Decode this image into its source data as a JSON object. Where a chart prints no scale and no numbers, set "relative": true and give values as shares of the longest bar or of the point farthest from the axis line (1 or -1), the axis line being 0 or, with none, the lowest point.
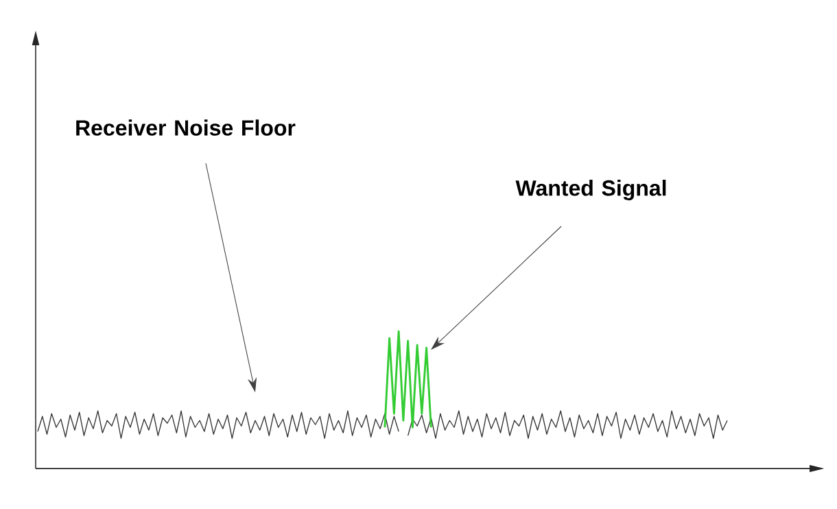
{
  "chart_data": {
    "type": "line",
    "relative": true,
    "marker": "none",
    "line_style": "solid",
    "annotations": [
      "Receiver Noise Floor",
      "Wanted Signal"
    ],
    "categories": [
      null,
      null,
      null,
      null,
      null,
      null,
      null,
      null,
      null,
      null,
      null,
      null,
      null,
      null,
      null,
      null,
      null,
      null,
      null,
      null,
      null,
      null,
      null,
      null,
      null,
      null,
      null,
      null,
      null,
      null,
      null,
      null,
      null,
      null,
      null,
      null,
      null,
      null,
      null,
      null,
      null,
      null,
      null,
      null,
      null,
      null,
      null,
      null,
      null,
      null,
      null,
      null,
      null,
      null,
      null,
      null,
      null,
      null,
      null,
      null,
      null,
      null,
      null,
      null,
      null,
      null,
      null,
      null,
      null,
      null,
      null,
      null,
      null,
      null,
      null,
      null,
      null,
      null,
      null,
      null,
      null,
      null,
      null,
      null,
      null,
      null,
      null,
      null,
      null,
      null,
      null,
      null,
      null,
      null,
      null,
      null,
      null,
      null,
      null,
      null,
      null,
      null,
      null,
      null,
      null,
      null,
      null,
      null,
      null,
      null,
      null,
      null,
      null,
      null,
      null,
      null,
      null,
      null,
      null,
      null,
      null,
      null,
      null,
      null,
      null,
      null,
      null,
      null,
      null,
      null,
      null,
      null,
      null,
      null,
      null,
      null,
      null,
      null,
      null,
      null,
      null,
      null,
      null,
      null,
      null,
      null,
      null,
      null,
      null,
      null
    ],
    "series": [
      {
        "color": "#333333",
        "values": [
          0.27,
          0.38,
          0.25,
          0.4,
          0.3,
          0.36,
          0.23,
          0.39,
          0.28,
          0.41,
          0.24,
          0.37,
          0.29,
          0.42,
          0.26,
          0.35,
          0.31,
          0.4,
          0.22,
          0.38,
          0.3,
          0.41,
          0.25,
          0.36,
          0.28,
          0.4,
          0.24,
          0.37,
          0.33,
          0.39,
          0.26,
          0.42,
          0.23,
          0.38,
          0.3,
          0.35,
          0.27,
          0.4,
          0.25,
          0.36,
          0.29,
          0.39,
          0.22,
          0.37,
          0.31,
          0.41,
          0.26,
          0.35,
          0.28,
          0.38,
          0.24,
          0.4,
          0.3,
          0.36,
          0.23,
          0.39,
          0.27,
          0.41,
          0.25,
          0.37,
          0.32,
          0.38,
          0.22,
          0.4,
          0.28,
          0.35,
          0.26,
          0.42,
          0.24,
          0.37,
          0.3,
          0.39,
          0.23,
          0.36,
          0.29,
          0.4,
          0.25,
          0.38,
          0.27,
          null,
          0.24,
          0.36,
          0.31,
          0.39,
          0.26,
          0.37,
          0.22,
          0.4,
          0.28,
          0.35,
          0.3,
          0.42,
          0.25,
          0.38,
          0.27,
          0.36,
          0.23,
          0.4,
          0.29,
          0.37,
          0.26,
          0.41,
          0.24,
          0.35,
          0.31,
          0.39,
          0.22,
          0.38,
          0.28,
          0.4,
          0.25,
          0.36,
          0.3,
          0.42,
          0.27,
          0.37,
          0.23,
          0.39,
          0.29,
          0.35,
          0.26,
          0.4,
          0.24,
          0.38,
          0.31,
          0.41,
          0.22,
          0.36,
          0.28,
          0.39,
          0.25,
          0.37,
          0.3,
          0.4,
          0.27,
          0.35,
          0.23,
          0.42,
          0.29,
          0.38,
          0.26,
          0.36,
          0.24,
          0.4,
          0.31,
          0.37,
          0.22,
          0.39,
          0.28,
          0.35
        ]
      },
      {
        "color": "#33cc33",
        "values": [
          null,
          null,
          null,
          null,
          null,
          null,
          null,
          null,
          null,
          null,
          null,
          null,
          null,
          null,
          null,
          null,
          null,
          null,
          null,
          null,
          null,
          null,
          null,
          null,
          null,
          null,
          null,
          null,
          null,
          null,
          null,
          null,
          null,
          null,
          null,
          null,
          null,
          null,
          null,
          null,
          null,
          null,
          null,
          null,
          null,
          null,
          null,
          null,
          null,
          null,
          null,
          null,
          null,
          null,
          null,
          null,
          null,
          null,
          null,
          null,
          null,
          null,
          null,
          null,
          null,
          null,
          null,
          null,
          null,
          null,
          null,
          null,
          null,
          null,
          null,
          0.3,
          0.95,
          0.4,
          1.0,
          0.35,
          0.93,
          0.3,
          0.9,
          0.4,
          0.88,
          0.3,
          null,
          null,
          null,
          null,
          null,
          null,
          null,
          null,
          null,
          null,
          null,
          null,
          null,
          null,
          null,
          null,
          null,
          null,
          null,
          null,
          null,
          null,
          null,
          null,
          null,
          null,
          null,
          null,
          null,
          null,
          null,
          null,
          null,
          null,
          null,
          null,
          null,
          null,
          null,
          null,
          null,
          null,
          null,
          null,
          null,
          null,
          null,
          null,
          null,
          null,
          null,
          null,
          null,
          null,
          null,
          null,
          null,
          null,
          null,
          null,
          null,
          null,
          null,
          null
        ]
      }
    ]
  }
}
